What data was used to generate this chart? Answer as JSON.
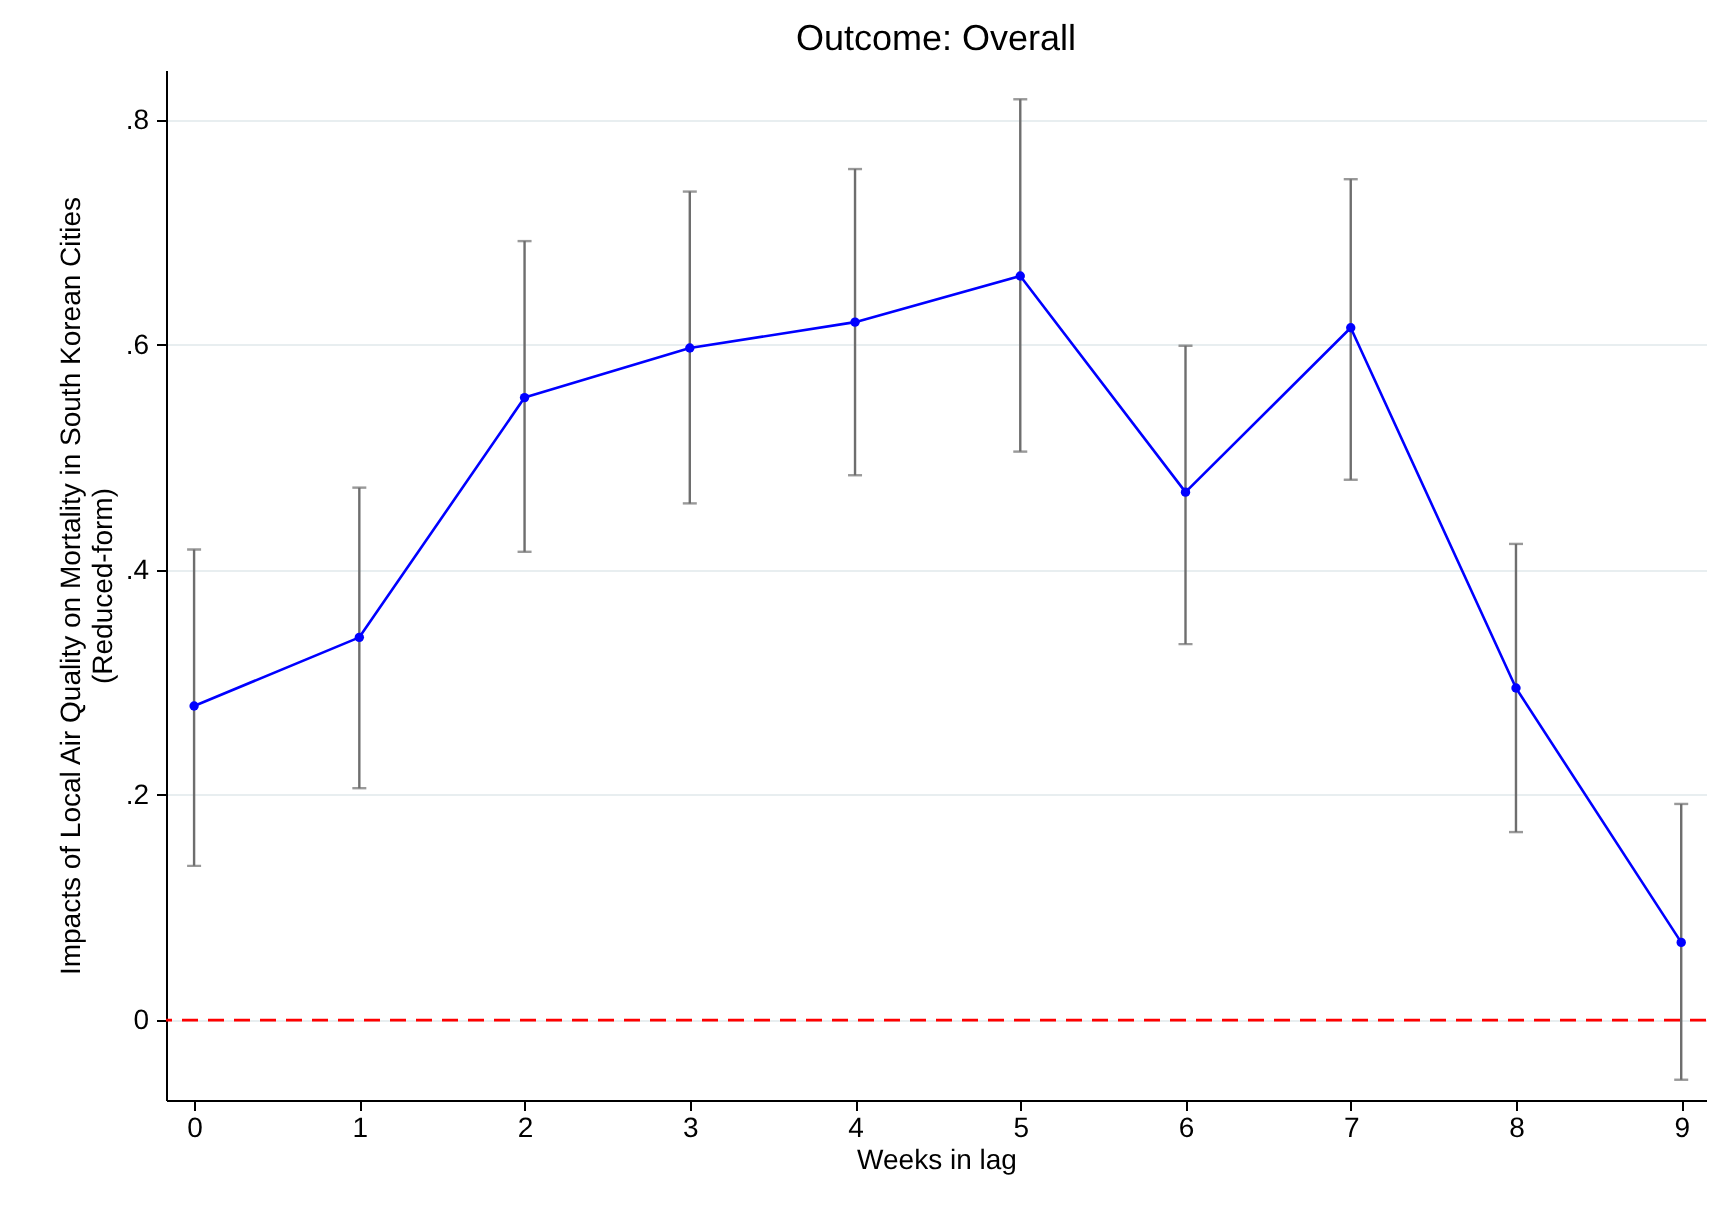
{
  "chart_data": {
    "type": "line",
    "title": "Outcome: Overall",
    "xlabel": "Weeks in lag",
    "ylabel": "Impacts of Local Air Quality on Mortality in South Korean Cities\n(Reduced-form)",
    "x": [
      0,
      1,
      2,
      3,
      4,
      5,
      6,
      7,
      8,
      9
    ],
    "series": [
      {
        "color": "#0000ff",
        "values": [
          0.279,
          0.34,
          0.553,
          0.597,
          0.62,
          0.661,
          0.469,
          0.615,
          0.295,
          0.069
        ],
        "errors": [
          [
            0.137,
            0.418
          ],
          [
            0.206,
            0.473
          ],
          [
            0.416,
            0.692
          ],
          [
            0.459,
            0.736
          ],
          [
            0.484,
            0.756
          ],
          [
            0.505,
            0.818
          ],
          [
            0.334,
            0.599
          ],
          [
            0.48,
            0.747
          ],
          [
            0.167,
            0.423
          ],
          [
            -0.053,
            0.192
          ]
        ]
      }
    ],
    "xlim": [
      -0.17,
      9.15
    ],
    "xticks": [
      0,
      1,
      2,
      3,
      4,
      5,
      6,
      7,
      8,
      9
    ],
    "ylim": [
      -0.071,
      0.844
    ],
    "yticks": [
      0,
      {
        "value": 0.2,
        "label": ".2"
      },
      {
        "value": 0.4,
        "label": ".4"
      },
      {
        "value": 0.6,
        "label": ".6"
      },
      {
        "value": 0.8,
        "label": ".8"
      }
    ],
    "grid": "y",
    "marker": "circle",
    "line_style": "solid",
    "ref_lines": [
      {
        "axis": "y",
        "value": 0,
        "color": "#ff0000",
        "line_style": "dashed"
      }
    ]
  }
}
